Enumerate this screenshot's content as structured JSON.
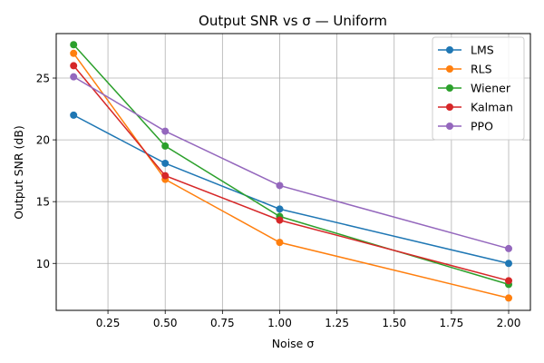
{
  "chart_data": {
    "type": "line",
    "title": "Output SNR vs σ  —  Uniform",
    "xlabel": "Noise σ",
    "ylabel": "Output SNR (dB)",
    "x": [
      0.1,
      0.5,
      1.0,
      2.0
    ],
    "xlim": [
      0.024,
      2.095
    ],
    "ylim": [
      6.2,
      28.6
    ],
    "xticks": [
      0.25,
      0.5,
      0.75,
      1.0,
      1.25,
      1.5,
      1.75,
      2.0
    ],
    "xtick_labels": [
      "0.25",
      "0.50",
      "0.75",
      "1.00",
      "1.25",
      "1.50",
      "1.75",
      "2.00"
    ],
    "yticks": [
      10,
      15,
      20,
      25
    ],
    "ytick_labels": [
      "10",
      "15",
      "20",
      "25"
    ],
    "grid": true,
    "legend_position": "top-right",
    "series": [
      {
        "name": "LMS",
        "color": "#1f77b4",
        "values": [
          22.0,
          18.1,
          14.4,
          10.0
        ]
      },
      {
        "name": "RLS",
        "color": "#ff7f0e",
        "values": [
          27.0,
          16.8,
          11.7,
          7.2
        ]
      },
      {
        "name": "Wiener",
        "color": "#2ca02c",
        "values": [
          27.7,
          19.5,
          13.8,
          8.3
        ]
      },
      {
        "name": "Kalman",
        "color": "#d62728",
        "values": [
          26.0,
          17.1,
          13.5,
          8.6
        ]
      },
      {
        "name": "PPO",
        "color": "#9467bd",
        "values": [
          25.1,
          20.7,
          16.3,
          11.2
        ]
      }
    ]
  }
}
